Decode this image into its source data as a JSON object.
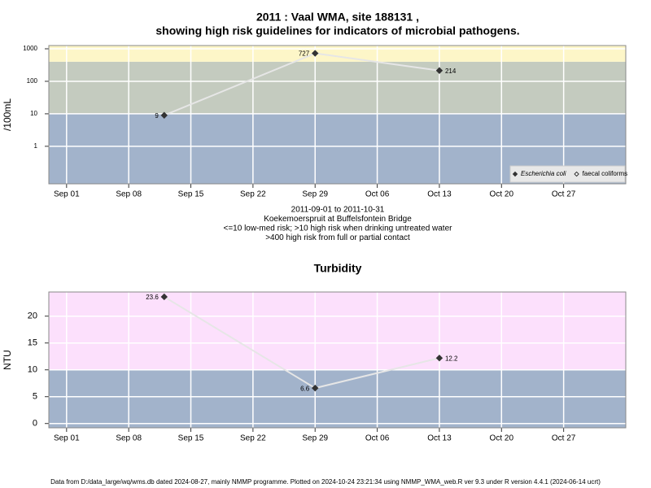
{
  "chart_data": [
    {
      "type": "line",
      "log_y": true,
      "title": [
        "2011 : Vaal WMA, site 188131 ,",
        "showing high risk guidelines for indicators of microbial pathogens."
      ],
      "ylabel": "/100mL",
      "x": [
        "Sep 12",
        "Sep 29",
        "Oct 13"
      ],
      "series": [
        {
          "name": "Escherichia coli",
          "color": "#333333",
          "marker": "filled",
          "values": [
            9,
            727,
            214
          ]
        },
        {
          "name": "faecal coliforms",
          "color": "#333333",
          "marker": "open",
          "values": [
            null,
            null,
            null
          ]
        }
      ],
      "line_color": "#e6e6e6",
      "xlim": [
        "Aug 30",
        "Nov 03"
      ],
      "xticks": [
        "Sep 01",
        "Sep 08",
        "Sep 15",
        "Sep 22",
        "Sep 29",
        "Oct 06",
        "Oct 13",
        "Oct 20",
        "Oct 27"
      ],
      "ylim": [
        0.07,
        1260
      ],
      "yticks": [
        1,
        10,
        100,
        1000
      ],
      "band_breaks": [
        10,
        400
      ],
      "band_colors": [
        "#a2b3cb",
        "#c4cbbf",
        "#fdf6c8"
      ],
      "grid": true,
      "legend": "lower right",
      "notes": [
        "2011-09-01 to 2011-10-31",
        "Koekemoerspruit at Buffelsfontein Bridge",
        "<=10 low-med risk; >10 high risk when drinking untreated water",
        ">400 high risk from full or partial contact"
      ]
    },
    {
      "type": "line",
      "log_y": false,
      "title": [
        "Turbidity"
      ],
      "ylabel": "NTU",
      "x": [
        "Sep 12",
        "Sep 29",
        "Oct 13"
      ],
      "series": [
        {
          "name": "Turbidity",
          "color": "#333333",
          "marker": "filled",
          "values": [
            23.6,
            6.6,
            12.2
          ]
        }
      ],
      "line_color": "#e6e6e6",
      "xlim": [
        "Aug 30",
        "Nov 03"
      ],
      "xticks": [
        "Sep 01",
        "Sep 08",
        "Sep 15",
        "Sep 22",
        "Sep 29",
        "Oct 06",
        "Oct 13",
        "Oct 20",
        "Oct 27"
      ],
      "ylim": [
        -0.8,
        24.5
      ],
      "yticks": [
        0,
        5,
        10,
        15,
        20
      ],
      "band_breaks": [
        10
      ],
      "band_colors": [
        "#a2b3cb",
        "#fce0fc"
      ],
      "grid": true
    }
  ],
  "footer": "Data from D:/data_large/wq/wms.db dated 2024-08-27, mainly NMMP programme. Plotted on 2024-10-24 23:21:34 using NMMP_WMA_web.R ver 9.3 under R version 4.4.1 (2024-06-14 ucrt)"
}
